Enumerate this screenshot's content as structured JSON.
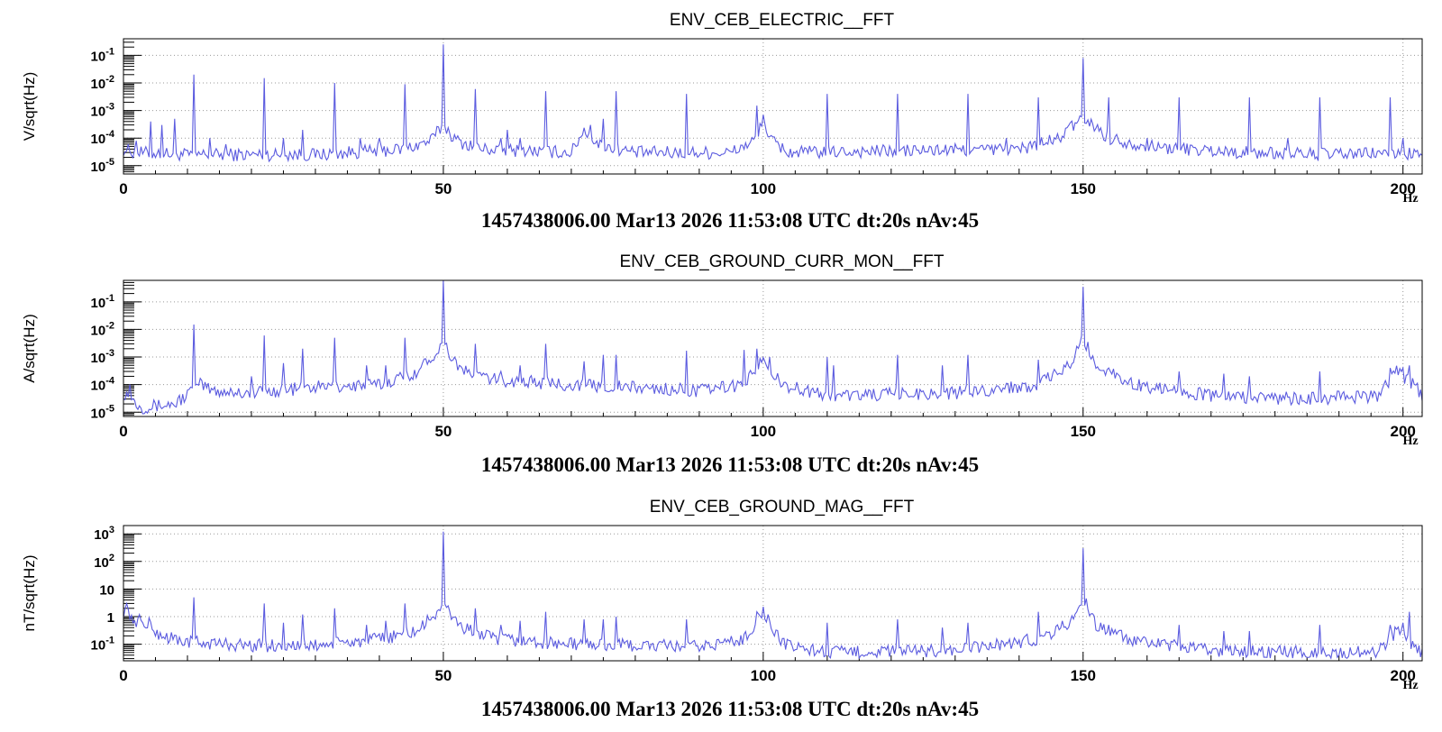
{
  "style": {
    "trace_color": "#5b5bdf",
    "grid_color": "#9a9a9a",
    "axis_color": "#000000"
  },
  "chart_data": [
    {
      "type": "line",
      "title": "ENV_CEB_ELECTRIC__FFT",
      "ylabel": "V/sqrt(Hz)",
      "xunit": "Hz",
      "footer": "1457438006.00 Mar13 2026 11:53:08 UTC dt:20s nAv:45",
      "y_log_scale": true,
      "xlim": [
        0,
        203
      ],
      "ylim": [
        5e-06,
        0.4
      ],
      "x_ticks": [
        {
          "v": 0,
          "label": "0"
        },
        {
          "v": 50,
          "label": "50"
        },
        {
          "v": 100,
          "label": "100"
        },
        {
          "v": 150,
          "label": "150"
        },
        {
          "v": 200,
          "label": "200"
        }
      ],
      "y_ticks": [
        {
          "v": 0.1,
          "base": "10",
          "exp": "-1"
        },
        {
          "v": 0.01,
          "base": "10",
          "exp": "-2"
        },
        {
          "v": 0.001,
          "base": "10",
          "exp": "-3"
        },
        {
          "v": 0.0001,
          "base": "10",
          "exp": "-4"
        },
        {
          "v": 1e-05,
          "base": "10",
          "exp": "-5"
        }
      ],
      "grid": true,
      "noise_floor": [
        [
          0,
          4e-05
        ],
        [
          2,
          3e-05
        ],
        [
          10,
          2.5e-05
        ],
        [
          30,
          2.5e-05
        ],
        [
          44,
          4e-05
        ],
        [
          48,
          8e-05
        ],
        [
          50,
          0.0003
        ],
        [
          52,
          8e-05
        ],
        [
          56,
          4e-05
        ],
        [
          70,
          3e-05
        ],
        [
          72,
          0.0002
        ],
        [
          74,
          6e-05
        ],
        [
          80,
          3e-05
        ],
        [
          95,
          3e-05
        ],
        [
          99,
          9e-05
        ],
        [
          100,
          0.0005
        ],
        [
          101,
          9e-05
        ],
        [
          104,
          3e-05
        ],
        [
          140,
          4e-05
        ],
        [
          146,
          9e-05
        ],
        [
          150,
          0.0006
        ],
        [
          154,
          0.0001
        ],
        [
          160,
          5e-05
        ],
        [
          175,
          3e-05
        ],
        [
          190,
          2.5e-05
        ],
        [
          198,
          3e-05
        ],
        [
          203,
          2.5e-05
        ]
      ],
      "peaks": [
        [
          2,
          8e-05
        ],
        [
          4.2,
          0.0004
        ],
        [
          6,
          0.0003
        ],
        [
          8,
          0.0005
        ],
        [
          11,
          0.02
        ],
        [
          13.6,
          0.0001
        ],
        [
          16,
          6e-05
        ],
        [
          22,
          0.015
        ],
        [
          25,
          0.0001
        ],
        [
          28,
          0.0002
        ],
        [
          33,
          0.01
        ],
        [
          37,
          0.0001
        ],
        [
          40,
          0.0001
        ],
        [
          44,
          0.009
        ],
        [
          50,
          0.25
        ],
        [
          55,
          0.006
        ],
        [
          59,
          0.0001
        ],
        [
          60,
          0.0002
        ],
        [
          62,
          0.0001
        ],
        [
          66,
          0.005
        ],
        [
          73,
          0.0003
        ],
        [
          75,
          0.0005
        ],
        [
          77,
          0.005
        ],
        [
          88,
          0.004
        ],
        [
          99,
          0.0015
        ],
        [
          100,
          0.0007
        ],
        [
          110,
          0.004
        ],
        [
          121,
          0.004
        ],
        [
          132,
          0.004
        ],
        [
          138,
          0.0001
        ],
        [
          143,
          0.003
        ],
        [
          150,
          0.08
        ],
        [
          154,
          0.003
        ],
        [
          160,
          0.0001
        ],
        [
          165,
          0.003
        ],
        [
          176,
          0.003
        ],
        [
          182,
          0.0001
        ],
        [
          187,
          0.003
        ],
        [
          198,
          0.003
        ],
        [
          200,
          0.0001
        ]
      ]
    },
    {
      "type": "line",
      "title": "ENV_CEB_GROUND_CURR_MON__FFT",
      "ylabel": "A/sqrt(Hz)",
      "xunit": "Hz",
      "footer": "1457438006.00 Mar13 2026 11:53:08 UTC dt:20s nAv:45",
      "y_log_scale": true,
      "xlim": [
        0,
        203
      ],
      "ylim": [
        7e-06,
        0.6
      ],
      "x_ticks": [
        {
          "v": 0,
          "label": "0"
        },
        {
          "v": 50,
          "label": "50"
        },
        {
          "v": 100,
          "label": "100"
        },
        {
          "v": 150,
          "label": "150"
        },
        {
          "v": 200,
          "label": "200"
        }
      ],
      "y_ticks": [
        {
          "v": 0.1,
          "base": "10",
          "exp": "-1"
        },
        {
          "v": 0.01,
          "base": "10",
          "exp": "-2"
        },
        {
          "v": 0.001,
          "base": "10",
          "exp": "-3"
        },
        {
          "v": 0.0001,
          "base": "10",
          "exp": "-4"
        },
        {
          "v": 1e-05,
          "base": "10",
          "exp": "-5"
        }
      ],
      "grid": true,
      "noise_floor": [
        [
          0,
          5e-05
        ],
        [
          3,
          1.5e-05
        ],
        [
          8,
          2e-05
        ],
        [
          12,
          0.0001
        ],
        [
          14,
          6e-05
        ],
        [
          20,
          5e-05
        ],
        [
          30,
          8e-05
        ],
        [
          40,
          0.0001
        ],
        [
          46,
          0.0003
        ],
        [
          50,
          0.003
        ],
        [
          53,
          0.0003
        ],
        [
          58,
          0.00015
        ],
        [
          70,
          0.0001
        ],
        [
          90,
          6e-05
        ],
        [
          97,
          0.0001
        ],
        [
          100,
          0.001
        ],
        [
          103,
          0.0001
        ],
        [
          110,
          4e-05
        ],
        [
          130,
          5e-05
        ],
        [
          143,
          0.0001
        ],
        [
          148,
          0.0005
        ],
        [
          150,
          0.005
        ],
        [
          152,
          0.0005
        ],
        [
          158,
          0.0001
        ],
        [
          170,
          4e-05
        ],
        [
          185,
          3e-05
        ],
        [
          196,
          4e-05
        ],
        [
          199,
          0.0003
        ],
        [
          202,
          8e-05
        ],
        [
          203,
          4e-05
        ]
      ],
      "peaks": [
        [
          1,
          0.0001
        ],
        [
          11,
          0.015
        ],
        [
          20,
          0.0002
        ],
        [
          22,
          0.006
        ],
        [
          25,
          0.0006
        ],
        [
          28,
          0.002
        ],
        [
          33,
          0.005
        ],
        [
          38,
          0.0005
        ],
        [
          41,
          0.0005
        ],
        [
          44,
          0.005
        ],
        [
          50,
          0.6
        ],
        [
          55,
          0.003
        ],
        [
          59,
          0.0003
        ],
        [
          62,
          0.0005
        ],
        [
          66,
          0.003
        ],
        [
          72,
          0.0007
        ],
        [
          75,
          0.0012
        ],
        [
          77,
          0.0012
        ],
        [
          88,
          0.0017
        ],
        [
          97,
          0.0018
        ],
        [
          99,
          0.002
        ],
        [
          101,
          0.001
        ],
        [
          110,
          0.001
        ],
        [
          111,
          0.0005
        ],
        [
          121,
          0.0012
        ],
        [
          128,
          0.0005
        ],
        [
          132,
          0.0012
        ],
        [
          143,
          0.0008
        ],
        [
          150,
          0.35
        ],
        [
          154,
          0.0004
        ],
        [
          165,
          0.0003
        ],
        [
          172,
          0.00025
        ],
        [
          176,
          0.0002
        ],
        [
          187,
          0.0003
        ],
        [
          198,
          0.0004
        ],
        [
          200,
          0.0004
        ],
        [
          201,
          0.0005
        ]
      ]
    },
    {
      "type": "line",
      "title": "ENV_CEB_GROUND_MAG__FFT",
      "ylabel": "nT/sqrt(Hz)",
      "xunit": "Hz",
      "footer": "1457438006.00 Mar13 2026 11:53:08 UTC dt:20s nAv:45",
      "y_log_scale": true,
      "xlim": [
        0,
        203
      ],
      "ylim": [
        0.025,
        2000
      ],
      "x_ticks": [
        {
          "v": 0,
          "label": "0"
        },
        {
          "v": 50,
          "label": "50"
        },
        {
          "v": 100,
          "label": "100"
        },
        {
          "v": 150,
          "label": "150"
        },
        {
          "v": 200,
          "label": "200"
        }
      ],
      "y_ticks": [
        {
          "v": 1000,
          "base": "10",
          "exp": "3"
        },
        {
          "v": 100,
          "base": "10",
          "exp": "2"
        },
        {
          "v": 10,
          "base": "10",
          "exp": ""
        },
        {
          "v": 1,
          "base": "1",
          "exp": ""
        },
        {
          "v": 0.1,
          "base": "10",
          "exp": "-1"
        }
      ],
      "grid": true,
      "noise_floor": [
        [
          0,
          1.5
        ],
        [
          2,
          0.7
        ],
        [
          4,
          0.4
        ],
        [
          6,
          0.2
        ],
        [
          10,
          0.12
        ],
        [
          20,
          0.09
        ],
        [
          30,
          0.09
        ],
        [
          40,
          0.15
        ],
        [
          46,
          0.3
        ],
        [
          50,
          2.5
        ],
        [
          53,
          0.4
        ],
        [
          58,
          0.15
        ],
        [
          70,
          0.1
        ],
        [
          90,
          0.08
        ],
        [
          97,
          0.15
        ],
        [
          100,
          1.5
        ],
        [
          103,
          0.1
        ],
        [
          110,
          0.05
        ],
        [
          130,
          0.06
        ],
        [
          143,
          0.15
        ],
        [
          148,
          0.6
        ],
        [
          150,
          5
        ],
        [
          152,
          0.5
        ],
        [
          158,
          0.12
        ],
        [
          170,
          0.06
        ],
        [
          185,
          0.05
        ],
        [
          196,
          0.05
        ],
        [
          199,
          0.3
        ],
        [
          202,
          0.08
        ],
        [
          203,
          0.05
        ]
      ],
      "peaks": [
        [
          0.5,
          3
        ],
        [
          1,
          0.8
        ],
        [
          2.5,
          1.2
        ],
        [
          4,
          0.9
        ],
        [
          11,
          5
        ],
        [
          22,
          3
        ],
        [
          25,
          0.6
        ],
        [
          28,
          1.2
        ],
        [
          33,
          2
        ],
        [
          38,
          0.5
        ],
        [
          41,
          0.7
        ],
        [
          44,
          3
        ],
        [
          50,
          1200
        ],
        [
          55,
          2
        ],
        [
          59,
          0.5
        ],
        [
          62,
          0.7
        ],
        [
          66,
          1.5
        ],
        [
          72,
          0.8
        ],
        [
          75,
          0.8
        ],
        [
          77,
          1
        ],
        [
          88,
          0.8
        ],
        [
          99,
          1.5
        ],
        [
          101,
          0.7
        ],
        [
          110,
          0.6
        ],
        [
          121,
          0.8
        ],
        [
          128,
          0.4
        ],
        [
          132,
          0.6
        ],
        [
          143,
          1.5
        ],
        [
          150,
          300
        ],
        [
          154,
          0.5
        ],
        [
          165,
          0.5
        ],
        [
          172,
          0.3
        ],
        [
          176,
          0.3
        ],
        [
          187,
          0.5
        ],
        [
          198,
          0.5
        ],
        [
          200,
          0.6
        ],
        [
          201,
          1.5
        ]
      ]
    }
  ]
}
